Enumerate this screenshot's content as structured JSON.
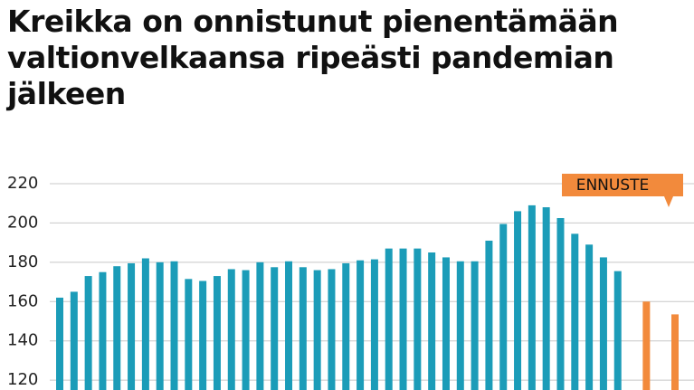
{
  "chart_data": {
    "type": "bar",
    "title": "Kreikka on onnistunut pienentämään valtionvelkaansa ripeästi pandemian jälkeen",
    "annotation": "ENNUSTE",
    "categories": [
      null,
      null,
      null,
      null,
      null,
      null,
      null,
      null,
      null,
      null,
      null,
      null,
      null,
      null,
      null,
      null,
      null,
      null,
      null,
      null,
      null,
      null,
      null,
      null,
      null,
      null,
      null,
      null,
      null,
      null,
      null,
      null,
      null,
      null,
      null,
      null,
      null,
      null,
      null,
      null,
      null,
      null,
      null,
      null
    ],
    "values": [
      162,
      165,
      173,
      175,
      178,
      179.5,
      182,
      180,
      180.5,
      171.5,
      170.5,
      173,
      176.5,
      176,
      180,
      177.5,
      180.5,
      177.5,
      176,
      176.5,
      179.5,
      181,
      181.5,
      187,
      187,
      187,
      185,
      182.5,
      180.5,
      180.5,
      191,
      199.5,
      206,
      209,
      208,
      202.5,
      194.5,
      189,
      182.5,
      175.5,
      null,
      160,
      null,
      153.5
    ],
    "colors": [
      "#1b9cb8",
      "#1b9cb8",
      "#1b9cb8",
      "#1b9cb8",
      "#1b9cb8",
      "#1b9cb8",
      "#1b9cb8",
      "#1b9cb8",
      "#1b9cb8",
      "#1b9cb8",
      "#1b9cb8",
      "#1b9cb8",
      "#1b9cb8",
      "#1b9cb8",
      "#1b9cb8",
      "#1b9cb8",
      "#1b9cb8",
      "#1b9cb8",
      "#1b9cb8",
      "#1b9cb8",
      "#1b9cb8",
      "#1b9cb8",
      "#1b9cb8",
      "#1b9cb8",
      "#1b9cb8",
      "#1b9cb8",
      "#1b9cb8",
      "#1b9cb8",
      "#1b9cb8",
      "#1b9cb8",
      "#1b9cb8",
      "#1b9cb8",
      "#1b9cb8",
      "#1b9cb8",
      "#1b9cb8",
      "#1b9cb8",
      "#1b9cb8",
      "#1b9cb8",
      "#1b9cb8",
      "#1b9cb8",
      "#f28a3c",
      "#f28a3c",
      "#f28a3c",
      "#f28a3c"
    ],
    "annotation_color": "#f28a3c",
    "ylim": [
      115,
      220
    ],
    "yticks": [
      120,
      140,
      160,
      180,
      200,
      220
    ],
    "grid": true
  }
}
